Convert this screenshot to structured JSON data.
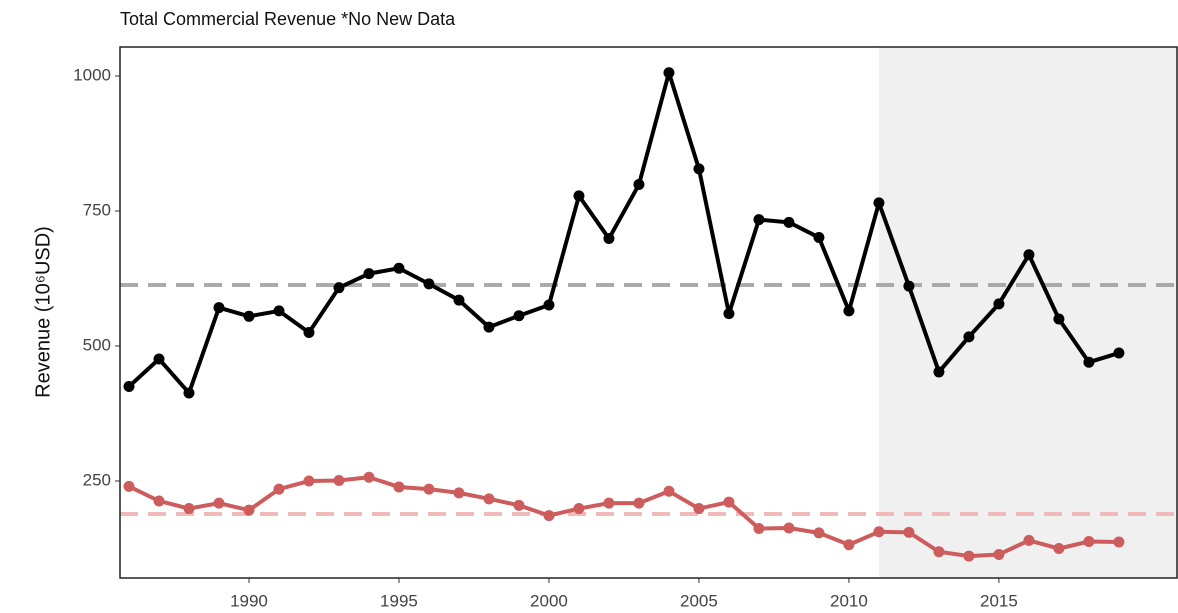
{
  "chart_data": {
    "type": "line",
    "title": "Total Commercial Revenue *No New Data",
    "ylabel": "Revenue (10⁶USD)",
    "x": [
      1986,
      1987,
      1988,
      1989,
      1990,
      1991,
      1992,
      1993,
      1994,
      1995,
      1996,
      1997,
      1998,
      1999,
      2000,
      2001,
      2002,
      2003,
      2004,
      2005,
      2006,
      2007,
      2008,
      2009,
      2010,
      2011,
      2012,
      2013,
      2014,
      2015,
      2016,
      2017,
      2018,
      2019
    ],
    "series": [
      {
        "color": "#000000",
        "values": [
          425,
          476,
          413,
          571,
          555,
          565,
          525,
          608,
          634,
          644,
          615,
          585,
          535,
          556,
          576,
          778,
          699,
          799,
          1006,
          828,
          560,
          734,
          729,
          701,
          565,
          765,
          611,
          452,
          517,
          578,
          669,
          550,
          470,
          487
        ]
      },
      {
        "color": "#cd5c5c",
        "values": [
          240,
          213,
          199,
          209,
          196,
          235,
          250,
          251,
          257,
          239,
          235,
          228,
          217,
          205,
          186,
          199,
          209,
          209,
          231,
          199,
          211,
          162,
          163,
          154,
          132,
          156,
          155,
          119,
          111,
          114,
          140,
          125,
          138,
          137
        ]
      }
    ],
    "hlines": [
      {
        "value": 613,
        "color": "#aaaaaa"
      },
      {
        "value": 189,
        "color": "#f0baba"
      }
    ],
    "shade_from": 2011,
    "xlim": [
      1985.7,
      2020.97
    ],
    "ylim": [
      70.4,
      1053.7
    ],
    "xticks": [
      1990,
      1995,
      2000,
      2005,
      2010,
      2015
    ],
    "yticks": [
      250,
      500,
      750,
      1000
    ]
  }
}
